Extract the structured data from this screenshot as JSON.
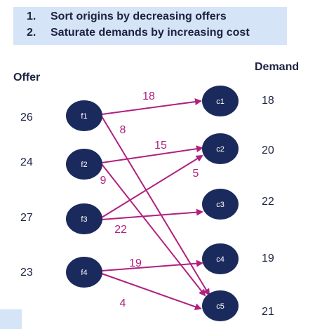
{
  "banner": {
    "steps": [
      {
        "num": "1.",
        "text": "Sort origins by decreasing offers"
      },
      {
        "num": "2.",
        "text": "Saturate demands by increasing cost"
      }
    ]
  },
  "headers": {
    "offer": "Offer",
    "demand": "Demand"
  },
  "origins": [
    {
      "name": "f1",
      "offer": "26"
    },
    {
      "name": "f2",
      "offer": "24"
    },
    {
      "name": "f3",
      "offer": "27"
    },
    {
      "name": "f4",
      "offer": "23"
    }
  ],
  "destinations": [
    {
      "name": "c1",
      "demand": "18"
    },
    {
      "name": "c2",
      "demand": "20"
    },
    {
      "name": "c3",
      "demand": "22"
    },
    {
      "name": "c4",
      "demand": "19"
    },
    {
      "name": "c5",
      "demand": "21"
    }
  ],
  "flows": [
    {
      "from": "f1",
      "to": "c1",
      "value": "18"
    },
    {
      "from": "f1",
      "to": "c5",
      "value": "8"
    },
    {
      "from": "f2",
      "to": "c2",
      "value": "15"
    },
    {
      "from": "f2",
      "to": "c5",
      "value": "9"
    },
    {
      "from": "f3",
      "to": "c2",
      "value": "5"
    },
    {
      "from": "f3",
      "to": "c3",
      "value": "22"
    },
    {
      "from": "f4",
      "to": "c4",
      "value": "19"
    },
    {
      "from": "f4",
      "to": "c5",
      "value": "4"
    }
  ],
  "colors": {
    "node": "#1b2a5c",
    "edge": "#b0207f",
    "banner": "#d6e4f7",
    "text": "#1c2340"
  }
}
